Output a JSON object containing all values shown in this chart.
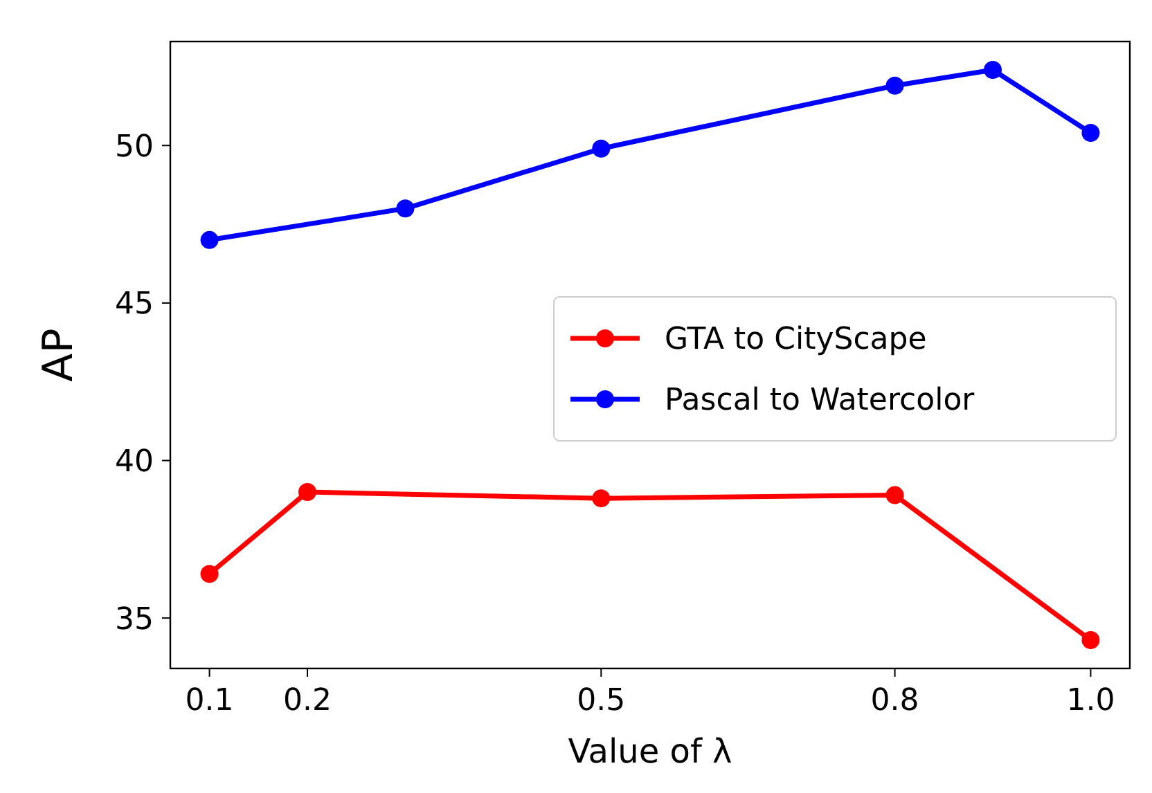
{
  "chart_data": {
    "type": "line",
    "xlabel": "Value of λ",
    "ylabel": "AP",
    "xlim": [
      0.06,
      1.04
    ],
    "xticks": [
      {
        "value": 0.1,
        "label": "0.1"
      },
      {
        "value": 0.2,
        "label": "0.2"
      },
      {
        "value": 0.5,
        "label": "0.5"
      },
      {
        "value": 0.8,
        "label": "0.8"
      },
      {
        "value": 1.0,
        "label": "1.0"
      }
    ],
    "ylim": [
      33.4,
      53.3
    ],
    "yticks": [
      35,
      40,
      45,
      50
    ],
    "series": [
      {
        "name": "GTA to CityScape",
        "color": "#ff0000",
        "x": [
          0.1,
          0.2,
          0.5,
          0.8,
          1.0
        ],
        "values": [
          36.4,
          39.0,
          38.8,
          38.9,
          34.3
        ]
      },
      {
        "name": "Pascal to Watercolor",
        "color": "#0000ff",
        "x": [
          0.1,
          0.3,
          0.5,
          0.8,
          0.9,
          1.0
        ],
        "values": [
          47.0,
          48.0,
          49.9,
          51.9,
          52.4,
          50.4
        ]
      }
    ],
    "marker": "circle",
    "line_style": "solid",
    "legend": "right",
    "grid": false
  }
}
